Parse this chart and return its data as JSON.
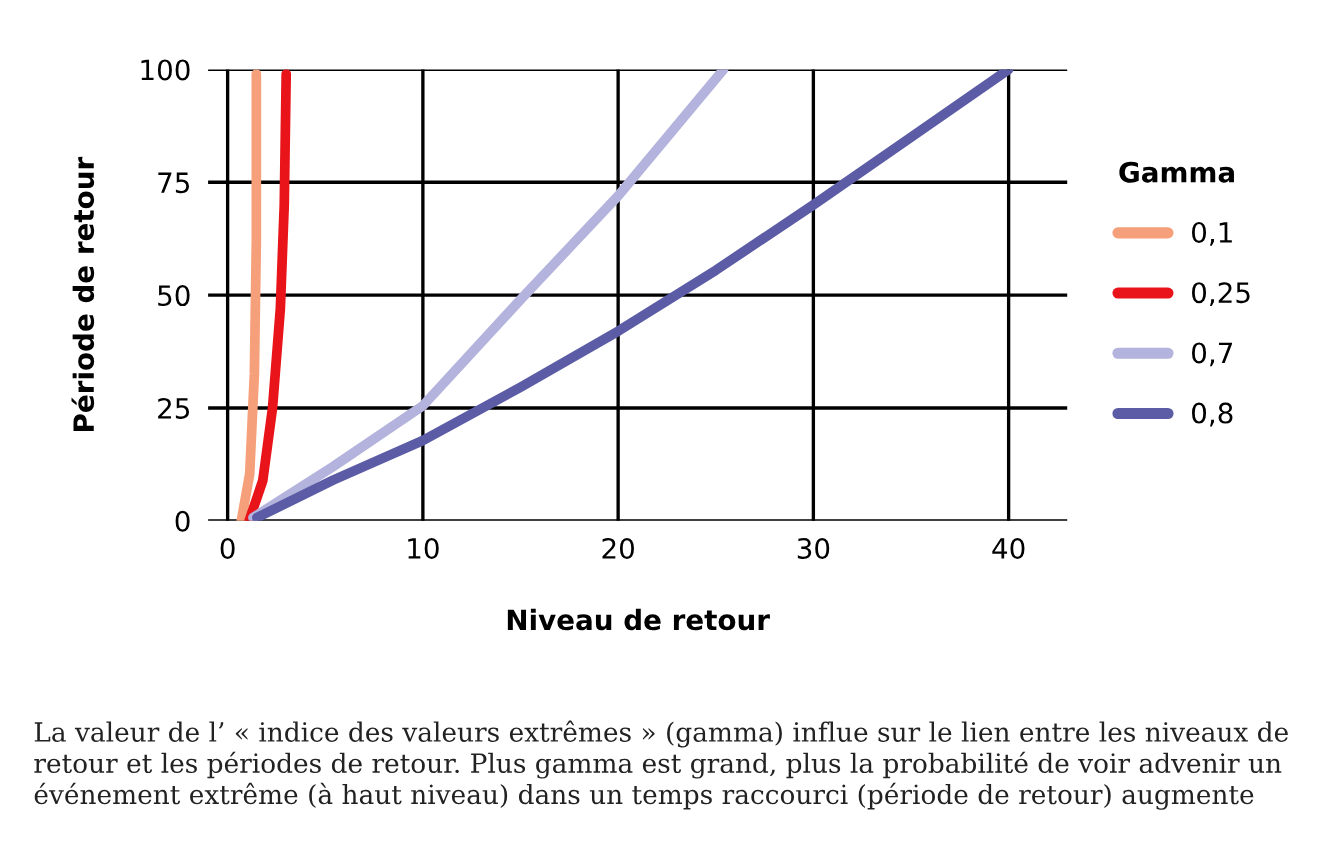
{
  "chart_data": {
    "type": "line",
    "xlabel": "Niveau de retour",
    "ylabel": "Période de retour",
    "legend_title": "Gamma",
    "xlim": [
      -1,
      43
    ],
    "ylim": [
      0,
      100
    ],
    "xticks": [
      0,
      10,
      20,
      30,
      40
    ],
    "yticks": [
      0,
      25,
      50,
      75,
      100
    ],
    "grid": true,
    "legend": "right",
    "marker": "none",
    "line_style": "solid",
    "series": [
      {
        "name": "0,1",
        "color": "#f5a07a",
        "x": [
          0.7,
          1.13,
          1.37,
          1.47,
          1.47
        ],
        "values": [
          0,
          10.4,
          32.6,
          62,
          99
        ]
      },
      {
        "name": "0,25",
        "color": "#e8141a",
        "x": [
          1.1,
          1.8,
          2.3,
          2.7,
          2.9,
          3.0
        ],
        "values": [
          0,
          8.9,
          25,
          47,
          70,
          99
        ]
      },
      {
        "name": "0,7",
        "color": "#b3b3dd",
        "x": [
          1.3,
          5.4,
          10,
          15,
          20,
          25.4
        ],
        "values": [
          0.7,
          12,
          25.5,
          49,
          72,
          100
        ]
      },
      {
        "name": "0,8",
        "color": "#5c5ca6",
        "x": [
          1.5,
          5.4,
          10,
          15,
          20,
          25,
          30,
          35,
          40
        ],
        "values": [
          0.7,
          9,
          17.8,
          29.6,
          42,
          55.5,
          70,
          85,
          100
        ]
      }
    ],
    "annotations": [
      "La valeur de l’ « indice des valeurs extrêmes » (gamma) influe sur le lien entre les niveaux de retour et les périodes de retour. Plus gamma est grand, plus la probabilité de voir advenir un événement extrême (à haut niveau) dans un temps raccourci (période de retour) augmente"
    ]
  }
}
